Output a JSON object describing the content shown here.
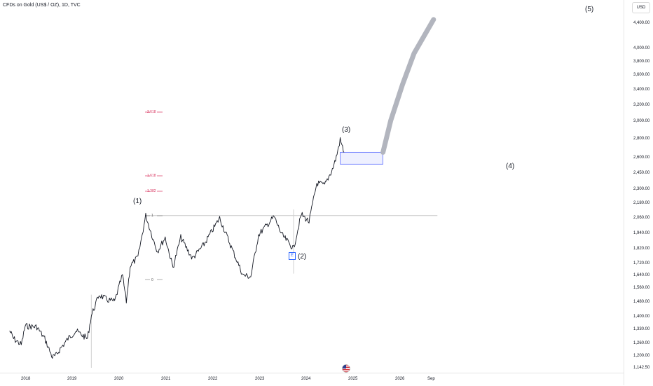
{
  "title": "CFDs on Gold (US$ / OZ), 1D, TVC",
  "currency": "USD",
  "colors": {
    "price_line": "#131722",
    "projection": "#b2b5be",
    "box_border": "#5b6cff",
    "box_fill": "#eef0ff",
    "fib_red": "#d8345f",
    "grid_line": "#c8c8c8",
    "badge_blue": "#2962ff"
  },
  "icons": [
    "earnings-e-icon",
    "us-flag-icon"
  ],
  "earnings_badge": "E",
  "fib_labels": [
    "2.618",
    "1.618",
    "1.382"
  ],
  "fib_levels": [
    "1",
    "0"
  ],
  "wave_labels": {
    "w1": "(1)",
    "w2": "(2)",
    "w3": "(3)",
    "w4": "(4)",
    "w5": "(5)"
  },
  "price_ticks": [
    "4,400.00",
    "4,000.00",
    "3,800.00",
    "3,600.00",
    "3,400.00",
    "3,200.00",
    "3,000.00",
    "2,800.00",
    "2,600.00",
    "2,450.00",
    "2,300.00",
    "2,180.00",
    "2,060.00",
    "1,940.00",
    "1,820.00",
    "1,720.00",
    "1,640.00",
    "1,560.00",
    "1,480.00",
    "1,400.00",
    "1,330.00",
    "1,260.00",
    "1,200.00",
    "1,142.50"
  ],
  "time_ticks": [
    "2018",
    "2019",
    "2020",
    "2021",
    "2022",
    "2023",
    "2024",
    "2025",
    "2026",
    "Sep"
  ],
  "chart_data": {
    "type": "line",
    "scale": "log",
    "ylim": [
      1142.5,
      4550
    ],
    "x_range": [
      "2017-09",
      "2026-10"
    ],
    "series": [
      {
        "values": [
          [
            "2017-09",
            1320
          ],
          [
            "2017-10",
            1280
          ],
          [
            "2017-12",
            1250
          ],
          [
            "2018-01",
            1345
          ],
          [
            "2018-04",
            1340
          ],
          [
            "2018-06",
            1280
          ],
          [
            "2018-08",
            1190
          ],
          [
            "2018-09",
            1200
          ],
          [
            "2018-10",
            1230
          ],
          [
            "2018-12",
            1280
          ],
          [
            "2019-02",
            1320
          ],
          [
            "2019-05",
            1280
          ],
          [
            "2019-06",
            1400
          ],
          [
            "2019-08",
            1520
          ],
          [
            "2019-10",
            1490
          ],
          [
            "2019-12",
            1480
          ],
          [
            "2020-02",
            1640
          ],
          [
            "2020-03",
            1480
          ],
          [
            "2020-04",
            1700
          ],
          [
            "2020-06",
            1760
          ],
          [
            "2020-08",
            2070
          ],
          [
            "2020-10",
            1880
          ],
          [
            "2020-11",
            1800
          ],
          [
            "2021-01",
            1900
          ],
          [
            "2021-03",
            1690
          ],
          [
            "2021-05",
            1900
          ],
          [
            "2021-08",
            1750
          ],
          [
            "2021-11",
            1850
          ],
          [
            "2022-03",
            2050
          ],
          [
            "2022-06",
            1830
          ],
          [
            "2022-09",
            1640
          ],
          [
            "2022-11",
            1630
          ],
          [
            "2023-01",
            1920
          ],
          [
            "2023-05",
            2060
          ],
          [
            "2023-07",
            1920
          ],
          [
            "2023-10",
            1820
          ],
          [
            "2023-12",
            2080
          ],
          [
            "2024-02",
            2020
          ],
          [
            "2024-04",
            2350
          ],
          [
            "2024-06",
            2330
          ],
          [
            "2024-08",
            2480
          ],
          [
            "2024-09",
            2600
          ],
          [
            "2024-10",
            2780
          ],
          [
            "2024-11",
            2650
          ]
        ]
      }
    ],
    "projection": [
      [
        "2025-09",
        2650
      ],
      [
        "2025-11",
        3000
      ],
      [
        "2026-02",
        3450
      ],
      [
        "2026-05",
        3900
      ],
      [
        "2026-10",
        4450
      ]
    ],
    "zone": {
      "x": [
        "2024-10",
        "2025-09"
      ],
      "y": [
        2530,
        2650
      ]
    },
    "resistance_line": {
      "y": 2070,
      "x": [
        "2020-08",
        "2026-11"
      ]
    }
  }
}
